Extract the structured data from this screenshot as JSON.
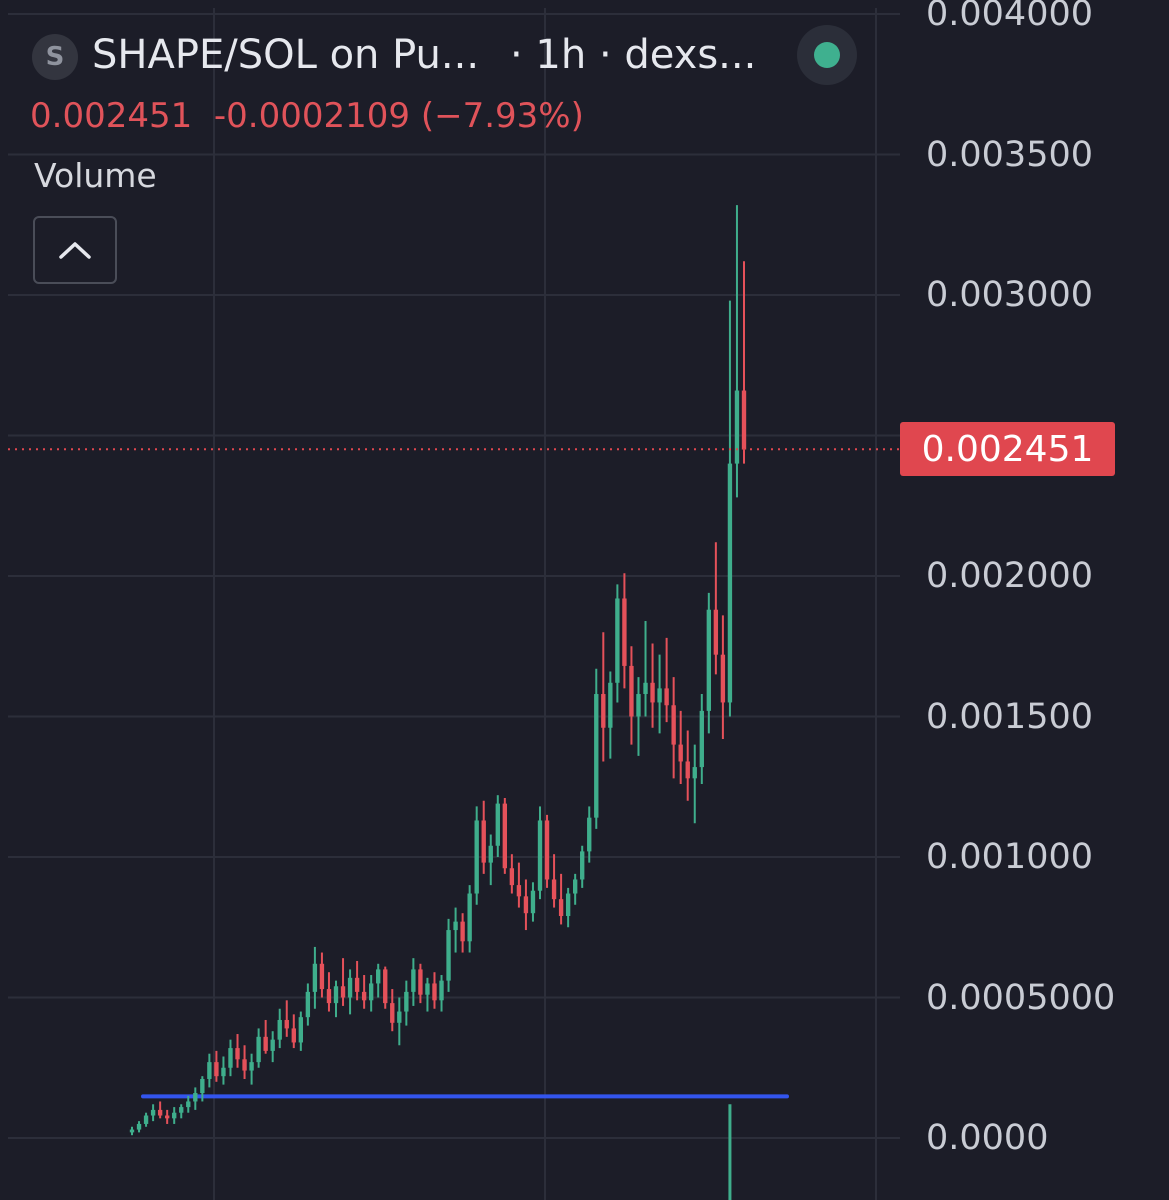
{
  "header": {
    "symbol_letter": "S",
    "title": "SHAPE/SOL on Pu...",
    "interval": "· 1h · dexs...",
    "status_color": "#3fb08f"
  },
  "quote": {
    "price": "0.002451",
    "change": "-0.0002109",
    "change_pct": "(−7.93%)"
  },
  "volume": {
    "label": "Volume",
    "collapse_icon": "chevron-up-icon"
  },
  "colors": {
    "up": "#3fae8c",
    "down": "#e5515a",
    "level_line": "#3355ee",
    "price_line": "#e0474f"
  },
  "chart_data": {
    "type": "candlestick",
    "title": "",
    "xlabel": "",
    "ylabel": "",
    "ylim": [
      0,
      0.004
    ],
    "y_ticks": [
      "0.0000",
      "0.0005000",
      "0.001000",
      "0.001500",
      "0.002000",
      "0.003000",
      "0.003500",
      "0.004000"
    ],
    "current_price": 0.002451,
    "current_price_label": "0.002451",
    "horizontal_line": 0.000148,
    "candles": [
      [
        2e-05,
        4e-05,
        1e-05,
        3e-05
      ],
      [
        3e-05,
        6e-05,
        2e-05,
        5e-05
      ],
      [
        5e-05,
        9e-05,
        4e-05,
        8e-05
      ],
      [
        8e-05,
        0.00012,
        6e-05,
        0.0001
      ],
      [
        0.0001,
        0.00013,
        7e-05,
        8e-05
      ],
      [
        8e-05,
        0.0001,
        5e-05,
        7e-05
      ],
      [
        7e-05,
        0.00011,
        5e-05,
        9e-05
      ],
      [
        9e-05,
        0.00012,
        7e-05,
        0.00011
      ],
      [
        0.00011,
        0.00015,
        9e-05,
        0.00013
      ],
      [
        0.00013,
        0.00018,
        0.0001,
        0.00016
      ],
      [
        0.00016,
        0.00022,
        0.00013,
        0.00021
      ],
      [
        0.00021,
        0.0003,
        0.00018,
        0.00027
      ],
      [
        0.00027,
        0.00031,
        0.0002,
        0.00022
      ],
      [
        0.00022,
        0.00029,
        0.00019,
        0.00025
      ],
      [
        0.00025,
        0.00035,
        0.00022,
        0.00032
      ],
      [
        0.00032,
        0.00037,
        0.00025,
        0.00028
      ],
      [
        0.00028,
        0.00033,
        0.00021,
        0.00024
      ],
      [
        0.00024,
        0.0003,
        0.00019,
        0.00027
      ],
      [
        0.00027,
        0.00039,
        0.00025,
        0.00036
      ],
      [
        0.00036,
        0.00042,
        0.0003,
        0.00031
      ],
      [
        0.00031,
        0.00038,
        0.00027,
        0.00035
      ],
      [
        0.00035,
        0.00046,
        0.00032,
        0.00042
      ],
      [
        0.00042,
        0.00049,
        0.00036,
        0.00039
      ],
      [
        0.00039,
        0.00044,
        0.00032,
        0.00034
      ],
      [
        0.00034,
        0.00045,
        0.00031,
        0.00043
      ],
      [
        0.00043,
        0.00055,
        0.0004,
        0.00052
      ],
      [
        0.00052,
        0.00068,
        0.00046,
        0.00062
      ],
      [
        0.00062,
        0.00066,
        0.0005,
        0.00053
      ],
      [
        0.00053,
        0.00059,
        0.00045,
        0.00048
      ],
      [
        0.00048,
        0.00056,
        0.00043,
        0.00054
      ],
      [
        0.00054,
        0.00064,
        0.00047,
        0.0005
      ],
      [
        0.0005,
        0.0006,
        0.00044,
        0.00057
      ],
      [
        0.00057,
        0.00063,
        0.00049,
        0.00052
      ],
      [
        0.00052,
        0.00058,
        0.00046,
        0.00049
      ],
      [
        0.00049,
        0.00058,
        0.00045,
        0.00055
      ],
      [
        0.00055,
        0.00062,
        0.0005,
        0.0006
      ],
      [
        0.0006,
        0.00061,
        0.00046,
        0.00048
      ],
      [
        0.00048,
        0.00053,
        0.00038,
        0.00041
      ],
      [
        0.00041,
        0.0005,
        0.00033,
        0.00045
      ],
      [
        0.00045,
        0.00056,
        0.0004,
        0.00052
      ],
      [
        0.00052,
        0.00064,
        0.00047,
        0.0006
      ],
      [
        0.0006,
        0.00062,
        0.00048,
        0.00051
      ],
      [
        0.00051,
        0.00057,
        0.00045,
        0.00055
      ],
      [
        0.00055,
        0.00059,
        0.00046,
        0.00049
      ],
      [
        0.00049,
        0.00058,
        0.00045,
        0.00056
      ],
      [
        0.00056,
        0.00078,
        0.00052,
        0.00074
      ],
      [
        0.00074,
        0.00082,
        0.00066,
        0.00077
      ],
      [
        0.00077,
        0.0008,
        0.00066,
        0.0007
      ],
      [
        0.0007,
        0.0009,
        0.00066,
        0.00087
      ],
      [
        0.00087,
        0.00118,
        0.00083,
        0.00113
      ],
      [
        0.00113,
        0.0012,
        0.00094,
        0.00098
      ],
      [
        0.00098,
        0.00108,
        0.0009,
        0.00104
      ],
      [
        0.00104,
        0.00122,
        0.001,
        0.00119
      ],
      [
        0.00119,
        0.00121,
        0.00094,
        0.00096
      ],
      [
        0.00096,
        0.00101,
        0.00087,
        0.0009
      ],
      [
        0.0009,
        0.00098,
        0.00082,
        0.00086
      ],
      [
        0.00086,
        0.00092,
        0.00074,
        0.0008
      ],
      [
        0.0008,
        0.00091,
        0.00077,
        0.00088
      ],
      [
        0.00088,
        0.00118,
        0.00085,
        0.00113
      ],
      [
        0.00113,
        0.00115,
        0.00089,
        0.00092
      ],
      [
        0.00092,
        0.00101,
        0.00082,
        0.00085
      ],
      [
        0.00085,
        0.00094,
        0.00076,
        0.00079
      ],
      [
        0.00079,
        0.00089,
        0.00075,
        0.00087
      ],
      [
        0.00087,
        0.00094,
        0.00083,
        0.00092
      ],
      [
        0.00092,
        0.00104,
        0.00089,
        0.00102
      ],
      [
        0.00102,
        0.00118,
        0.00098,
        0.00114
      ],
      [
        0.00114,
        0.00167,
        0.0011,
        0.00158
      ],
      [
        0.00158,
        0.0018,
        0.00134,
        0.00146
      ],
      [
        0.00146,
        0.00166,
        0.00135,
        0.00162
      ],
      [
        0.00162,
        0.00197,
        0.00155,
        0.00192
      ],
      [
        0.00192,
        0.00201,
        0.0016,
        0.00168
      ],
      [
        0.00168,
        0.00175,
        0.0014,
        0.0015
      ],
      [
        0.0015,
        0.00164,
        0.00136,
        0.00158
      ],
      [
        0.00158,
        0.00184,
        0.0015,
        0.00162
      ],
      [
        0.00162,
        0.00176,
        0.00146,
        0.00155
      ],
      [
        0.00155,
        0.00172,
        0.00144,
        0.0016
      ],
      [
        0.0016,
        0.00178,
        0.00148,
        0.00154
      ],
      [
        0.00154,
        0.00164,
        0.00128,
        0.0014
      ],
      [
        0.0014,
        0.00152,
        0.00126,
        0.00134
      ],
      [
        0.00134,
        0.00145,
        0.0012,
        0.00128
      ],
      [
        0.00128,
        0.0014,
        0.00112,
        0.00132
      ],
      [
        0.00132,
        0.00158,
        0.00126,
        0.00152
      ],
      [
        0.00152,
        0.00194,
        0.00144,
        0.00188
      ],
      [
        0.00188,
        0.00212,
        0.00165,
        0.00172
      ],
      [
        0.00172,
        0.00186,
        0.00142,
        0.00155
      ],
      [
        0.00155,
        0.00298,
        0.0015,
        0.0024
      ],
      [
        0.0024,
        0.00332,
        0.00228,
        0.00266
      ],
      [
        0.00266,
        0.00312,
        0.0024,
        0.00245
      ]
    ],
    "volume_spike": 0.00012
  }
}
